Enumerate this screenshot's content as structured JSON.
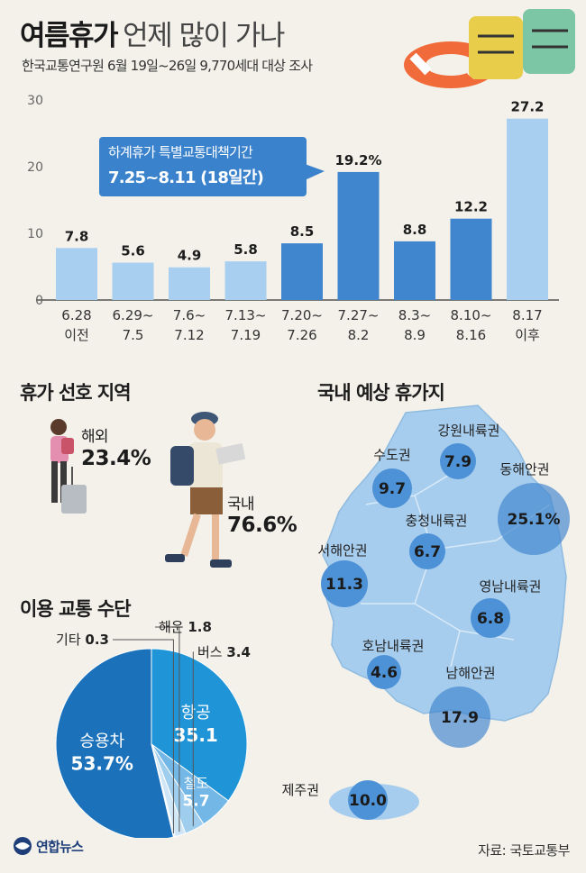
{
  "header": {
    "title_bold": "여름휴가",
    "title_rest": "언제 많이 가나",
    "subtitle": "한국교통연구원 6월 19일~26일 9,770세대 대상 조사"
  },
  "colors": {
    "bar_light": "#a8cff0",
    "bar_dark": "#3f86cf",
    "callout": "#3b82cc",
    "pie_car": "#1b72bb",
    "pie_air": "#1f94d6",
    "pie_rail": "#72b7e6",
    "pie_bus": "#9fcdee",
    "pie_other": "#cfe6f7",
    "map_fill": "#a7cdee",
    "bubble_fill": "#4d92d6"
  },
  "callout": {
    "line1": "하계휴가 특별교통대책기간",
    "line2": "7.25~8.11 (18일간)"
  },
  "sections": {
    "region_pref": "휴가 선호 지역",
    "domestic_dest": "국내 예상 휴가지",
    "transport": "이용 교통 수단"
  },
  "region_pref": {
    "overseas_label": "해외",
    "overseas_value": "23.4%",
    "domestic_label": "국내",
    "domestic_value": "76.6%"
  },
  "footer": {
    "logo": "연합뉴스",
    "source": "자료: 국토교통부"
  },
  "chart_data": [
    {
      "type": "bar",
      "categories": [
        [
          "6.28",
          "이전"
        ],
        [
          "6.29~",
          "7.5"
        ],
        [
          "7.6~",
          "7.12"
        ],
        [
          "7.13~",
          "7.19"
        ],
        [
          "7.20~",
          "7.26"
        ],
        [
          "7.27~",
          "8.2"
        ],
        [
          "8.3~",
          "8.9"
        ],
        [
          "8.10~",
          "8.16"
        ],
        [
          "8.17",
          "이후"
        ]
      ],
      "values": [
        7.8,
        5.6,
        4.9,
        5.8,
        8.5,
        19.2,
        8.8,
        12.2,
        27.2
      ],
      "value_labels": [
        "7.8",
        "5.6",
        "4.9",
        "5.8",
        "8.5",
        "19.2%",
        "8.8",
        "12.2",
        "27.2"
      ],
      "highlighted": [
        false,
        false,
        false,
        false,
        true,
        true,
        true,
        true,
        false
      ],
      "yticks": [
        "0",
        "10",
        "20",
        "30"
      ],
      "ylim": [
        0,
        30
      ],
      "grid": false
    },
    {
      "type": "pie",
      "labels": [
        "승용차",
        "항공",
        "철도",
        "버스",
        "해운",
        "기타"
      ],
      "values": [
        53.7,
        35.1,
        5.7,
        3.4,
        1.8,
        0.3
      ],
      "value_labels": [
        "53.7%",
        "35.1",
        "5.7",
        "3.4",
        "1.8",
        "0.3"
      ],
      "colors": [
        "#1b72bb",
        "#1f94d6",
        "#72b7e6",
        "#9fcdee",
        "#cfe6f7",
        "#e6f1fa"
      ]
    },
    {
      "type": "map_bubbles",
      "regions": [
        {
          "name": "수도권",
          "value": "9.7"
        },
        {
          "name": "강원내륙권",
          "value": "7.9"
        },
        {
          "name": "동해안권",
          "value": "25.1%"
        },
        {
          "name": "충청내륙권",
          "value": "6.7"
        },
        {
          "name": "서해안권",
          "value": "11.3"
        },
        {
          "name": "영남내륙권",
          "value": "6.8"
        },
        {
          "name": "호남내륙권",
          "value": "4.6"
        },
        {
          "name": "남해안권",
          "value": "17.9"
        },
        {
          "name": "제주권",
          "value": "10.0"
        }
      ]
    }
  ]
}
